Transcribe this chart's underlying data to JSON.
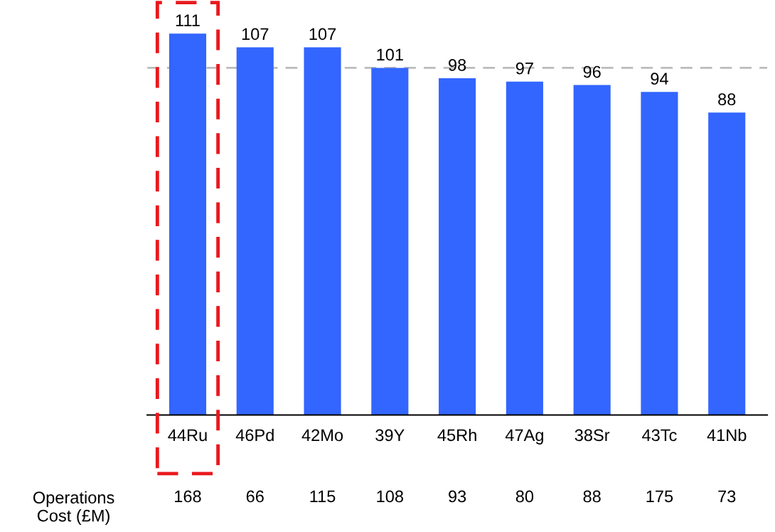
{
  "chart_data": {
    "type": "bar",
    "categories": [
      "44Ru",
      "46Pd",
      "42Mo",
      "39Y",
      "45Rh",
      "47Ag",
      "38Sr",
      "43Tc",
      "41Nb"
    ],
    "values": [
      111,
      107,
      107,
      101,
      98,
      97,
      96,
      94,
      88
    ],
    "color": "#3366ff",
    "data_labels": true,
    "grid": false,
    "legend": false,
    "ref_lines": [
      {
        "axis": "y",
        "value": 101,
        "color": "#bbbbbb",
        "line_style": "dashed"
      }
    ],
    "annotations": [
      "Operations\nCost (£M)",
      "168",
      "66",
      "115",
      "108",
      "93",
      "80",
      "88",
      "175",
      "73"
    ]
  }
}
